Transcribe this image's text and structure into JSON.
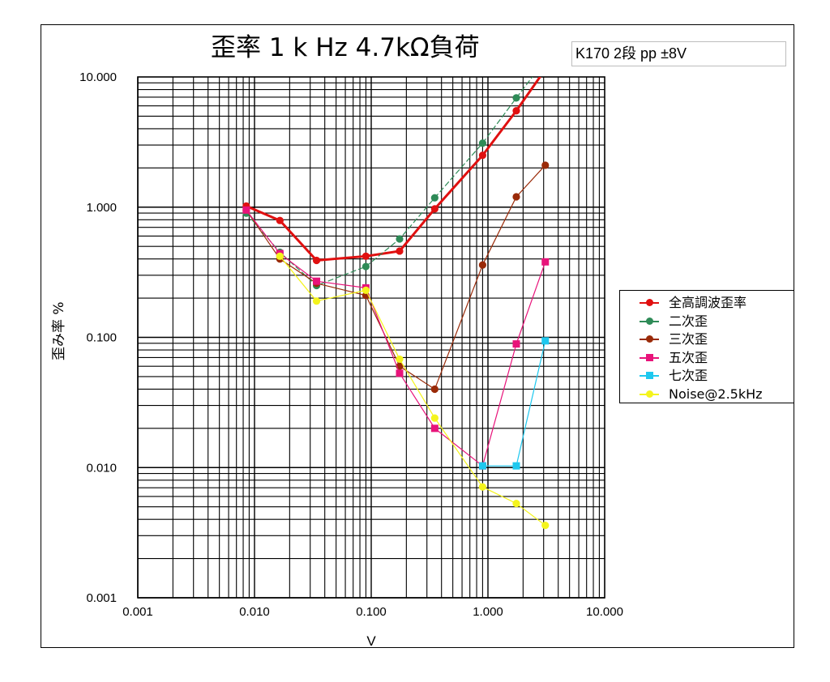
{
  "chart_data": {
    "type": "line",
    "title": "歪率 1 k Hz 4.7kΩ負荷",
    "subtitle": "K170 2段 pp ±8V",
    "xlabel": "V",
    "ylabel": "歪み率 %",
    "x_scale": "log",
    "y_scale": "log",
    "xlim": [
      0.001,
      10
    ],
    "ylim": [
      0.001,
      10
    ],
    "x_ticks": [
      "0.001",
      "0.010",
      "0.100",
      "1.000",
      "10.000"
    ],
    "y_ticks": [
      "0.001",
      "0.010",
      "0.100",
      "1.000",
      "10.000"
    ],
    "grid": true,
    "legend_position": "right",
    "series": [
      {
        "name": "全高調波歪率",
        "color": "#e01010",
        "marker": "circle",
        "line_width": 3,
        "points": [
          [
            0.0085,
            1.02
          ],
          [
            0.0165,
            0.79
          ],
          [
            0.034,
            0.39
          ],
          [
            0.09,
            0.42
          ],
          [
            0.175,
            0.46
          ],
          [
            0.35,
            0.97
          ],
          [
            0.9,
            2.5
          ],
          [
            1.75,
            5.5
          ],
          [
            2.9,
            10.5
          ]
        ]
      },
      {
        "name": "二次歪",
        "color": "#2e8b57",
        "marker": "circle",
        "line_width": 1.2,
        "dashed": true,
        "points": [
          [
            0.0085,
            0.9
          ],
          [
            0.0165,
            0.45
          ],
          [
            0.034,
            0.25
          ],
          [
            0.09,
            0.35
          ],
          [
            0.175,
            0.57
          ],
          [
            0.35,
            1.18
          ],
          [
            0.9,
            3.1
          ],
          [
            1.75,
            6.9
          ],
          [
            2.5,
            10.5
          ]
        ]
      },
      {
        "name": "三次歪",
        "color": "#9a2a08",
        "marker": "circle",
        "line_width": 1.2,
        "points": [
          [
            0.0085,
            0.95
          ],
          [
            0.0165,
            0.4
          ],
          [
            0.034,
            0.26
          ],
          [
            0.09,
            0.21
          ],
          [
            0.175,
            0.06
          ],
          [
            0.35,
            0.04
          ],
          [
            0.9,
            0.36
          ],
          [
            1.75,
            1.2
          ],
          [
            3.1,
            2.1
          ]
        ]
      },
      {
        "name": "五次歪",
        "color": "#e8137a",
        "marker": "square",
        "line_width": 1.2,
        "points": [
          [
            0.0085,
            0.95
          ],
          [
            0.0165,
            0.44
          ],
          [
            0.034,
            0.27
          ],
          [
            0.09,
            0.24
          ],
          [
            0.175,
            0.053
          ],
          [
            0.35,
            0.02
          ],
          [
            0.9,
            0.0103
          ],
          [
            1.75,
            0.089
          ],
          [
            3.1,
            0.38
          ]
        ]
      },
      {
        "name": "七次歪",
        "color": "#1ec8ef",
        "marker": "square",
        "line_width": 1.2,
        "points": [
          [
            0.9,
            0.0103
          ],
          [
            1.75,
            0.0103
          ],
          [
            3.1,
            0.094
          ]
        ]
      },
      {
        "name": "Noise@2.5kHz",
        "color": "#f4f41c",
        "marker": "circle",
        "line_width": 1.2,
        "points": [
          [
            0.0165,
            0.42
          ],
          [
            0.034,
            0.19
          ],
          [
            0.09,
            0.23
          ],
          [
            0.175,
            0.068
          ],
          [
            0.35,
            0.024
          ],
          [
            0.9,
            0.0071
          ],
          [
            1.75,
            0.0053
          ],
          [
            3.1,
            0.0036
          ]
        ]
      }
    ]
  }
}
